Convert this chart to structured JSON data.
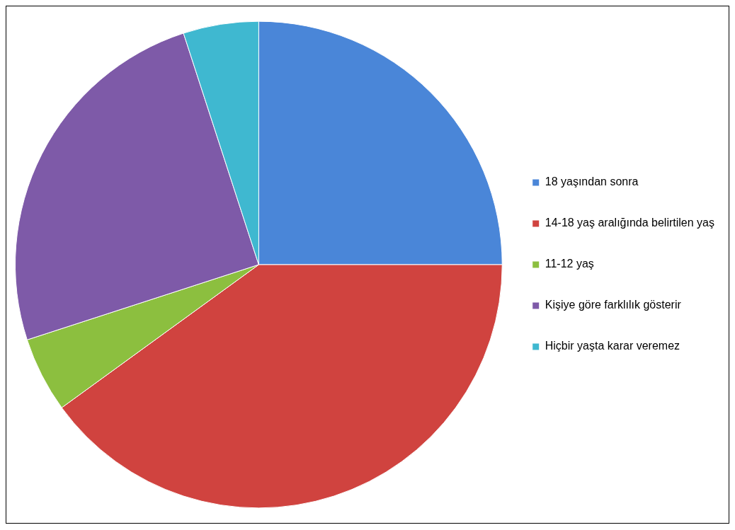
{
  "chart_data": {
    "type": "pie",
    "categories": [
      "18 yaşından sonra",
      "14-18 yaş aralığında belirtilen yaş",
      "11-12 yaş",
      "Kişiye göre farklılık gösterir",
      "Hiçbir yaşta karar veremez"
    ],
    "values": [
      25,
      40,
      5,
      25,
      5
    ],
    "colors": [
      "#4a86d8",
      "#d0433f",
      "#8cbf3f",
      "#7e5aa8",
      "#3fb8d0"
    ],
    "legend": "right"
  }
}
